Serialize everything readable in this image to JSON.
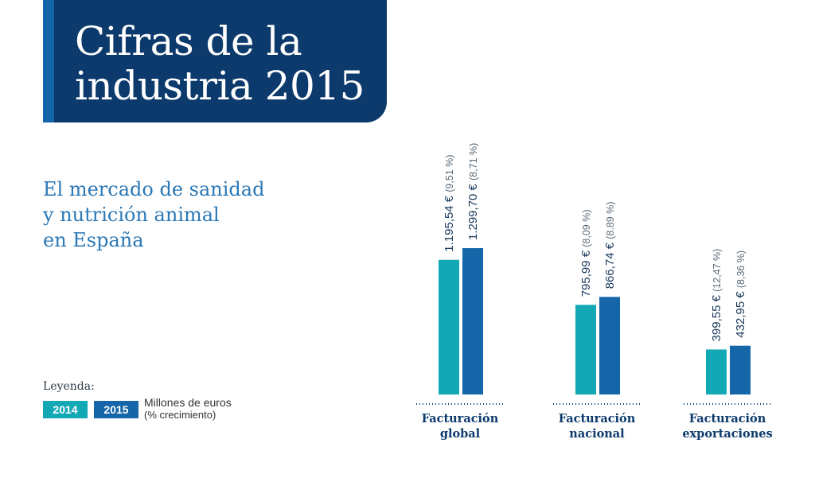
{
  "header": {
    "title_line1": "Cifras de la",
    "title_line2": "industria 2015"
  },
  "subtitle": {
    "line1": "El mercado de sanidad",
    "line2": "y nutrición animal",
    "line3": "en España"
  },
  "legend": {
    "title": "Leyenda:",
    "year1": "2014",
    "year2": "2015",
    "unit_line1": "Millones de euros",
    "unit_line2": "(% crecimiento)"
  },
  "colors": {
    "header": "#0c3a6c",
    "accent": "#1466a8",
    "series_2014": "#12a9b5",
    "series_2015": "#1466a8",
    "label_value": "#1b3a5c",
    "label_pct": "#5b6b7a"
  },
  "chart_data": {
    "type": "bar",
    "categories": [
      "Facturación global",
      "Facturación nacional",
      "Facturación exportaciones"
    ],
    "category_lines": [
      [
        "Facturación",
        "global"
      ],
      [
        "Facturación",
        "nacional"
      ],
      [
        "Facturación",
        "exportaciones"
      ]
    ],
    "series": [
      {
        "name": "2014",
        "values": [
          1195.54,
          795.99,
          399.55
        ],
        "value_labels": [
          "1.195,54 €",
          "795,99 €",
          "399,55 €"
        ],
        "pct_labels": [
          "(9,51 %)",
          "(8,09 %)",
          "(12,47 %)"
        ]
      },
      {
        "name": "2015",
        "values": [
          1299.7,
          866.74,
          432.95
        ],
        "value_labels": [
          "1.299,70 €",
          "866,74 €",
          "432,95 €"
        ],
        "pct_labels": [
          "(8,71 %)",
          "(8.89 %)",
          "(8,36 %)"
        ]
      }
    ],
    "ylabel": "Millones de euros",
    "ylim": [
      0,
      1299.7
    ]
  }
}
